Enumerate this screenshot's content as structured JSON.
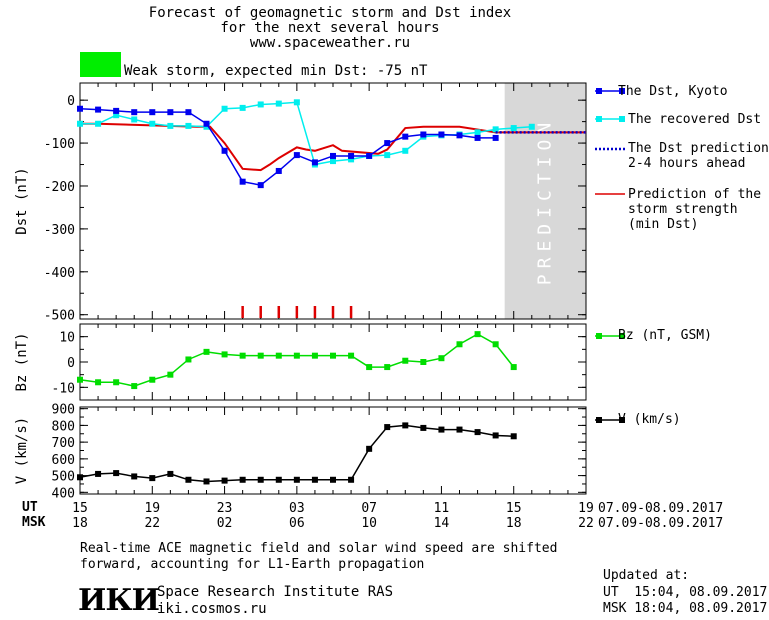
{
  "header": {
    "title_line1": "Forecast of geomagnetic storm and Dst index",
    "title_line2": "for the next several hours",
    "site": "www.spaceweather.ru",
    "status_text": "Weak storm, expected min Dst: -75 nT",
    "status_color": "#00ee00"
  },
  "legend": {
    "dst_kyoto": "The Dst, Kyoto",
    "recovered": "The recovered Dst",
    "prediction_line1": "The Dst prediction",
    "prediction_line2": "2-4 hours ahead",
    "storm_line1": "Prediction of the",
    "storm_line2": "storm strength",
    "storm_line3": "(min Dst)",
    "bz": "Bz (nT, GSM)",
    "v": "V (km/s)"
  },
  "prediction_label": "PREDICTION",
  "time_axis": {
    "ut_label": "UT",
    "msk_label": "MSK",
    "ut_ticks": [
      "15",
      "19",
      "23",
      "03",
      "07",
      "11",
      "15",
      "19"
    ],
    "msk_ticks": [
      "18",
      "22",
      "02",
      "06",
      "10",
      "14",
      "18",
      "22"
    ],
    "ut_date_range": "07.09-08.09.2017",
    "msk_date_range": "07.09-08.09.2017"
  },
  "footer": {
    "note_line1": "Real-time ACE magnetic field and solar wind speed are shifted",
    "note_line2": "forward, accounting for L1-Earth propagation",
    "logo_text": "ИКИ",
    "institute": "Space Research Institute RAS",
    "institute_url": "iki.cosmos.ru",
    "updated_label": "Updated at:",
    "updated_ut": "UT  15:04, 08.09.2017",
    "updated_msk": "MSK 18:04, 08.09.2017"
  },
  "colors": {
    "dst_kyoto": "#0000ee",
    "recovered": "#00eeee",
    "prediction": "#0000cc",
    "storm": "#dd0000",
    "bz": "#00dd00",
    "v": "#000000",
    "prediction_band": "#d8d8d8"
  },
  "chart_data": [
    {
      "type": "line",
      "ylabel": "Dst (nT)",
      "ylim": [
        -510,
        40
      ],
      "yticks": [
        0,
        -100,
        -200,
        -300,
        -400,
        -500
      ],
      "xlim": [
        0,
        28
      ],
      "prediction_region": [
        23.5,
        28
      ],
      "series": [
        {
          "name": "The Dst, Kyoto",
          "marker": "square",
          "x": [
            0,
            1,
            2,
            3,
            4,
            5,
            6,
            7,
            8,
            9,
            10,
            11,
            12,
            13,
            14,
            15,
            16,
            17,
            18,
            19,
            20,
            21,
            22,
            23
          ],
          "values": [
            -20,
            -22,
            -25,
            -28,
            -28,
            -28,
            -28,
            -55,
            -118,
            -190,
            -198,
            -165,
            -128,
            -145,
            -130,
            -130,
            -130,
            -100,
            -85,
            -80,
            -80,
            -82,
            -88,
            -88
          ]
        },
        {
          "name": "The recovered Dst",
          "marker": "square",
          "x": [
            0,
            1,
            2,
            3,
            4,
            5,
            6,
            7,
            8,
            9,
            10,
            11,
            12,
            13,
            14,
            15,
            16,
            17,
            18,
            19,
            20,
            21,
            22,
            23,
            24,
            25
          ],
          "values": [
            -55,
            -55,
            -35,
            -45,
            -55,
            -60,
            -60,
            -62,
            -20,
            -18,
            -10,
            -8,
            -5,
            -150,
            -142,
            -138,
            -130,
            -128,
            -118,
            -85,
            -82,
            -80,
            -75,
            -68,
            -65,
            -62
          ]
        },
        {
          "name": "The Dst prediction 2-4 hours ahead",
          "dashed": true,
          "x": [
            23,
            28
          ],
          "values": [
            -75,
            -75
          ]
        },
        {
          "name": "Prediction of the storm strength (min Dst)",
          "x": [
            0,
            1,
            6.5,
            7.2,
            8,
            9,
            10,
            10.5,
            11,
            12,
            12.5,
            13,
            14,
            14.5,
            16.5,
            17,
            18,
            19,
            20,
            21,
            23,
            28
          ],
          "values": [
            -55,
            -55,
            -62,
            -62,
            -100,
            -160,
            -163,
            -150,
            -135,
            -110,
            -115,
            -118,
            -105,
            -118,
            -125,
            -115,
            -65,
            -62,
            -62,
            -62,
            -75,
            -75
          ]
        }
      ],
      "storm_markers_x": [
        9,
        10,
        11,
        12,
        13,
        14,
        15
      ]
    },
    {
      "type": "line",
      "ylabel": "Bz (nT)",
      "ylim": [
        -15,
        15
      ],
      "yticks": [
        10,
        0,
        -10
      ],
      "xlim": [
        0,
        28
      ],
      "series": [
        {
          "name": "Bz (nT, GSM)",
          "marker": "square",
          "x": [
            0,
            1,
            2,
            3,
            4,
            5,
            6,
            7,
            8,
            9,
            10,
            11,
            12,
            13,
            14,
            15,
            16,
            17,
            18,
            19,
            20,
            21,
            22,
            23,
            24
          ],
          "values": [
            -7,
            -8,
            -8,
            -9.5,
            -7,
            -5,
            1,
            4,
            3,
            2.5,
            2.5,
            2.5,
            2.5,
            2.5,
            2.5,
            2.5,
            -2,
            -2,
            0.5,
            0,
            1.5,
            7,
            11,
            7,
            -2
          ]
        }
      ]
    },
    {
      "type": "line",
      "ylabel": "V (km/s)",
      "ylim": [
        390,
        910
      ],
      "yticks": [
        900,
        800,
        700,
        600,
        500,
        400
      ],
      "xlim": [
        0,
        28
      ],
      "series": [
        {
          "name": "V (km/s)",
          "marker": "square",
          "x": [
            0,
            1,
            2,
            3,
            4,
            5,
            6,
            7,
            8,
            9,
            10,
            11,
            12,
            13,
            14,
            15,
            16,
            17,
            18,
            19,
            20,
            21,
            22,
            23,
            24
          ],
          "values": [
            490,
            510,
            515,
            495,
            485,
            510,
            475,
            465,
            470,
            475,
            475,
            475,
            475,
            475,
            475,
            475,
            660,
            790,
            800,
            785,
            775,
            775,
            760,
            740,
            735
          ]
        }
      ]
    }
  ]
}
